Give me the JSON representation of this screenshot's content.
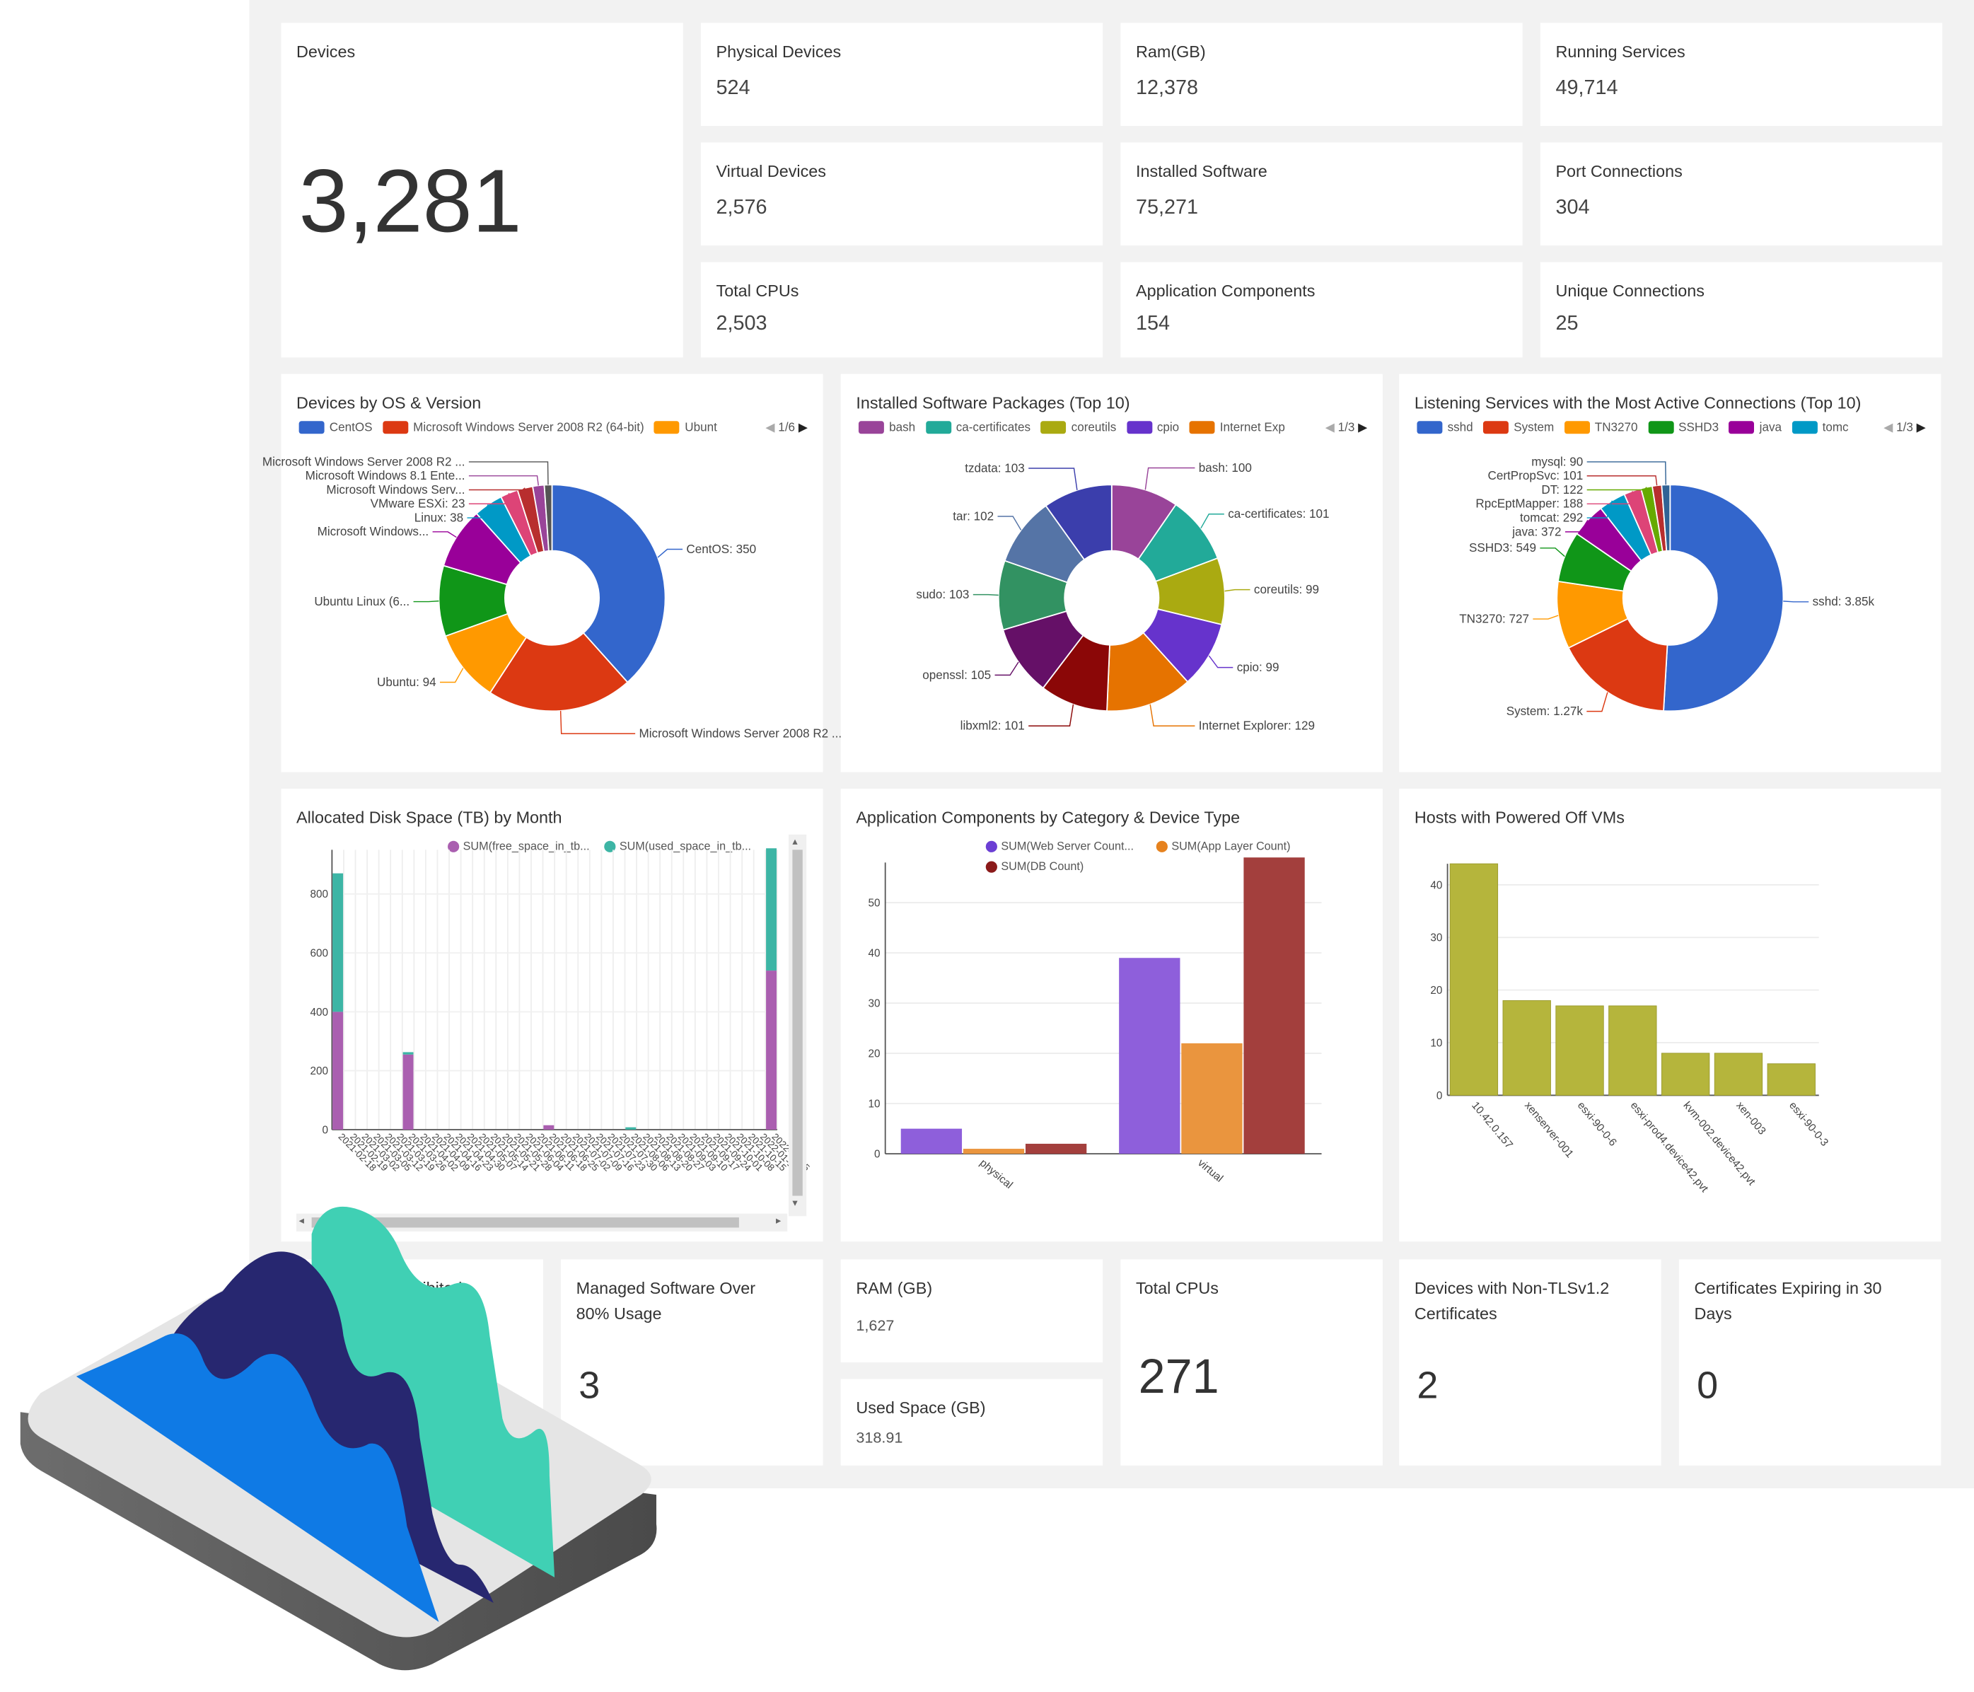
{
  "stats": {
    "devices": {
      "label": "Devices",
      "value": "3,281"
    },
    "physical": {
      "label": "Physical Devices",
      "value": "524"
    },
    "ram": {
      "label": "Ram(GB)",
      "value": "12,378"
    },
    "running": {
      "label": "Running Services",
      "value": "49,714"
    },
    "virtual": {
      "label": "Virtual Devices",
      "value": "2,576"
    },
    "installed": {
      "label": "Installed Software",
      "value": "75,271"
    },
    "port": {
      "label": "Port Connections",
      "value": "304"
    },
    "cpus": {
      "label": "Total CPUs",
      "value": "2,503"
    },
    "appcomp": {
      "label": "Application Components",
      "value": "154"
    },
    "unique": {
      "label": "Unique Connections",
      "value": "25"
    }
  },
  "os_chart": {
    "title": "Devices by OS & Version",
    "legend": [
      "CentOS",
      "Microsoft Windows Server 2008 R2 (64-bit)",
      "Ubunt"
    ],
    "page": "1/6",
    "colors": [
      "#3366cc",
      "#dc3912",
      "#ff9900",
      "#109618",
      "#990099",
      "#0099c6",
      "#dd4477",
      "#b82e2e",
      "#994499",
      "#555555"
    ],
    "labels": [
      "CentOS: 350",
      "Microsoft Windows Server 2008 R2 ...",
      "Ubuntu: 94",
      "Ubuntu Linux (6...",
      "Microsoft Windows...",
      "Linux: 38",
      "VMware ESXi: 23",
      "Microsoft Windows Serv...",
      "Microsoft Windows 8.1 Ente...",
      "Microsoft Windows Server 2008 R2 ..."
    ]
  },
  "sw_chart": {
    "title": "Installed Software Packages (Top 10)",
    "legend": [
      "bash",
      "ca-certificates",
      "coreutils",
      "cpio",
      "Internet Exp"
    ],
    "page": "1/3",
    "colors": [
      "#994499",
      "#22aa99",
      "#aaaa11",
      "#6633cc",
      "#e67300",
      "#8b0707",
      "#651067",
      "#329262",
      "#5574a6",
      "#3b3eac"
    ],
    "labels": [
      "bash: 100",
      "ca-certificates: 101",
      "coreutils: 99",
      "cpio: 99",
      "Internet Explorer: 129",
      "libxml2: 101",
      "openssl: 105",
      "sudo: 103",
      "tar: 102",
      "tzdata: 103"
    ]
  },
  "ls_chart": {
    "title": "Listening Services with the Most Active Connections (Top 10)",
    "legend": [
      "sshd",
      "System",
      "TN3270",
      "SSHD3",
      "java",
      "tomc"
    ],
    "page": "1/3",
    "colors": [
      "#3366cc",
      "#dc3912",
      "#ff9900",
      "#109618",
      "#990099",
      "#0099c6",
      "#dd4477",
      "#66aa00",
      "#b82e2e",
      "#316395"
    ],
    "labels": [
      "sshd: 3.85k",
      "System: 1.27k",
      "TN3270: 727",
      "SSHD3: 549",
      "java: 372",
      "tomcat: 292",
      "RpcEptMapper: 188",
      "DT: 122",
      "CertPropSvc: 101",
      "mysql: 90"
    ]
  },
  "disk": {
    "title": "Allocated Disk Space (TB) by Month",
    "legend": [
      "SUM(free_space_in_tb...",
      "SUM(used_space_in_tb..."
    ],
    "y_ticks": [
      "0",
      "200",
      "400",
      "600",
      "800"
    ],
    "x_labels": [
      "2021-02-18",
      "2021-02-19",
      "2021-03-02",
      "2021-03-05",
      "2021-03-12",
      "2021-03-19",
      "2021-03-26",
      "2021-04-02",
      "2021-04-09",
      "2021-04-16",
      "2021-04-23",
      "2021-04-30",
      "2021-05-07",
      "2021-05-14",
      "2021-05-21",
      "2021-05-28",
      "2021-06-04",
      "2021-06-11",
      "2021-06-18",
      "2021-06-25",
      "2021-07-02",
      "2021-07-09",
      "2021-07-16",
      "2021-07-23",
      "2021-07-30",
      "2021-08-06",
      "2021-08-13",
      "2021-08-20",
      "2021-08-27",
      "2021-09-03",
      "2021-09-10",
      "2021-09-17",
      "2021-09-24",
      "2021-10-01",
      "2021-10-08",
      "2021-10-15",
      "2022-01-14",
      "2022-02-15"
    ]
  },
  "appcat": {
    "title": "Application Components by Category & Device Type",
    "legend": [
      "SUM(Web Server Count...",
      "SUM(App Layer Count)",
      "SUM(DB Count)"
    ],
    "y_ticks": [
      "0",
      "10",
      "20",
      "30",
      "40",
      "50"
    ],
    "categories": [
      "physical",
      "virtual"
    ]
  },
  "hosts": {
    "title": "Hosts with Powered Off VMs",
    "y_ticks": [
      "0",
      "10",
      "20",
      "30",
      "40"
    ]
  },
  "bottom": {
    "prohibited": {
      "label": "hibited"
    },
    "managed": {
      "label_line1": "Managed Software Over",
      "label_line2": "80% Usage",
      "value": "3"
    },
    "ram": {
      "label": "RAM (GB)",
      "value": "1,627"
    },
    "used": {
      "label": "Used Space (GB)",
      "value": "318.91"
    },
    "cpus": {
      "label": "Total CPUs",
      "value": "271"
    },
    "nontls": {
      "label_line1": "Devices with Non-TLSv1.2",
      "label_line2": "Certificates",
      "value": "2"
    },
    "certs": {
      "label_line1": "Certificates Expiring in 30",
      "label_line2": "Days",
      "value": "0"
    }
  },
  "chart_data": [
    {
      "type": "pie",
      "title": "Devices by OS & Version",
      "categories": [
        "CentOS",
        "Microsoft Windows Server 2008 R2 (64-bit)",
        "Ubuntu",
        "Ubuntu Linux (64-bit)",
        "Microsoft Windows...",
        "Linux",
        "VMware ESXi",
        "Microsoft Windows Serv...",
        "Microsoft Windows 8.1 Ente...",
        "Microsoft Windows Server 2008 R2 ..."
      ],
      "values": [
        350,
        190,
        94,
        92,
        80,
        38,
        23,
        20,
        15,
        10
      ]
    },
    {
      "type": "pie",
      "title": "Installed Software Packages (Top 10)",
      "categories": [
        "bash",
        "ca-certificates",
        "coreutils",
        "cpio",
        "Internet Explorer",
        "libxml2",
        "openssl",
        "sudo",
        "tar",
        "tzdata"
      ],
      "values": [
        100,
        101,
        99,
        99,
        129,
        101,
        105,
        103,
        102,
        103
      ]
    },
    {
      "type": "pie",
      "title": "Listening Services with the Most Active Connections (Top 10)",
      "categories": [
        "sshd",
        "System",
        "TN3270",
        "SSHD3",
        "java",
        "tomcat",
        "RpcEptMapper",
        "DT",
        "CertPropSvc",
        "mysql"
      ],
      "values": [
        3850,
        1270,
        727,
        549,
        372,
        292,
        188,
        122,
        101,
        90
      ]
    },
    {
      "type": "bar",
      "title": "Allocated Disk Space (TB) by Month",
      "ylim": [
        0,
        950
      ],
      "stacked": true,
      "categories_count": 38,
      "series": [
        {
          "name": "SUM(free_space_in_tb...",
          "color": "#aa5fb0",
          "points": [
            [
              0,
              400
            ],
            [
              6,
              255
            ],
            [
              18,
              15
            ],
            [
              37,
              540
            ]
          ]
        },
        {
          "name": "SUM(used_space_in_tb...",
          "color": "#3db5a5",
          "points": [
            [
              0,
              470
            ],
            [
              6,
              8
            ],
            [
              18,
              0
            ],
            [
              25,
              8
            ],
            [
              37,
              415
            ]
          ]
        }
      ]
    },
    {
      "type": "bar",
      "title": "Application Components by Category & Device Type",
      "categories": [
        "physical",
        "virtual"
      ],
      "ylim": [
        0,
        58
      ],
      "series": [
        {
          "name": "SUM(Web Server Count...",
          "color": "#8e5fdb",
          "values": [
            5,
            39
          ]
        },
        {
          "name": "SUM(App Layer Count)",
          "color": "#ea953e",
          "values": [
            1,
            22
          ]
        },
        {
          "name": "SUM(DB Count)",
          "color": "#a33f3d",
          "values": [
            2,
            59
          ]
        }
      ]
    },
    {
      "type": "bar",
      "title": "Hosts with Powered Off VMs",
      "categories": [
        "10.42.0.157",
        "xenserver-001",
        "esxi-90-0-6",
        "esxi-prod4.device42.pvt",
        "kvm-002.device42.pvt",
        "xen-003",
        "esxi-90-0-3"
      ],
      "values": [
        44,
        18,
        17,
        17,
        8,
        8,
        6
      ],
      "ylim": [
        0,
        44
      ],
      "color": "#b5b53c"
    }
  ]
}
